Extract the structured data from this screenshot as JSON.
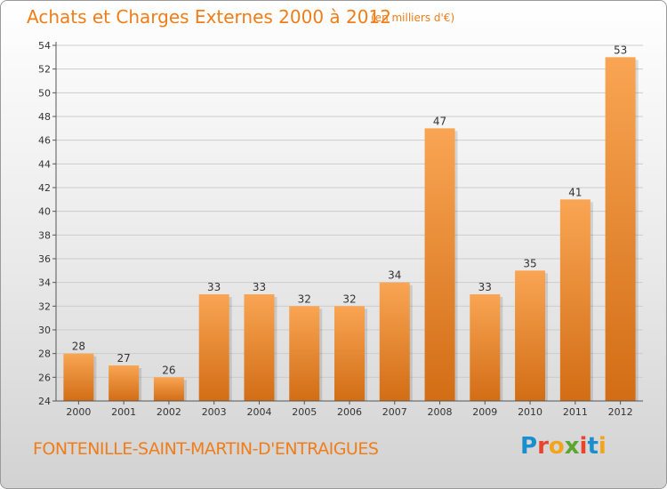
{
  "header": {
    "title": "Achats et Charges Externes 2000 à 2012",
    "subtitle": "(en milliers d'€)"
  },
  "footer": {
    "commune": "FONTENILLE-SAINT-MARTIN-D'ENTRAIGUES",
    "logo_letters": [
      "P",
      "r",
      "o",
      "x",
      "i",
      "t",
      "i"
    ],
    "logo_colors": [
      "#1a8fd0",
      "#e8452c",
      "#f2a51a",
      "#5aa630",
      "#e8452c",
      "#1a8fd0",
      "#f2a51a"
    ]
  },
  "colors": {
    "accent": "#f07d18",
    "bar_light": "#f9a553",
    "bar_dark": "#d26d15",
    "grid": "#cccccc"
  },
  "chart_data": {
    "type": "bar",
    "title": "Achats et Charges Externes 2000 à 2012",
    "subtitle": "(en milliers d'€)",
    "xlabel": "",
    "ylabel": "",
    "categories": [
      "2000",
      "2001",
      "2002",
      "2003",
      "2004",
      "2005",
      "2006",
      "2007",
      "2008",
      "2009",
      "2010",
      "2011",
      "2012"
    ],
    "values": [
      28,
      27,
      26,
      33,
      33,
      32,
      32,
      34,
      47,
      33,
      35,
      41,
      53
    ],
    "ylim": [
      24,
      54
    ],
    "yticks": [
      24,
      26,
      28,
      30,
      32,
      34,
      36,
      38,
      40,
      42,
      44,
      46,
      48,
      50,
      52,
      54
    ],
    "grid": true
  }
}
